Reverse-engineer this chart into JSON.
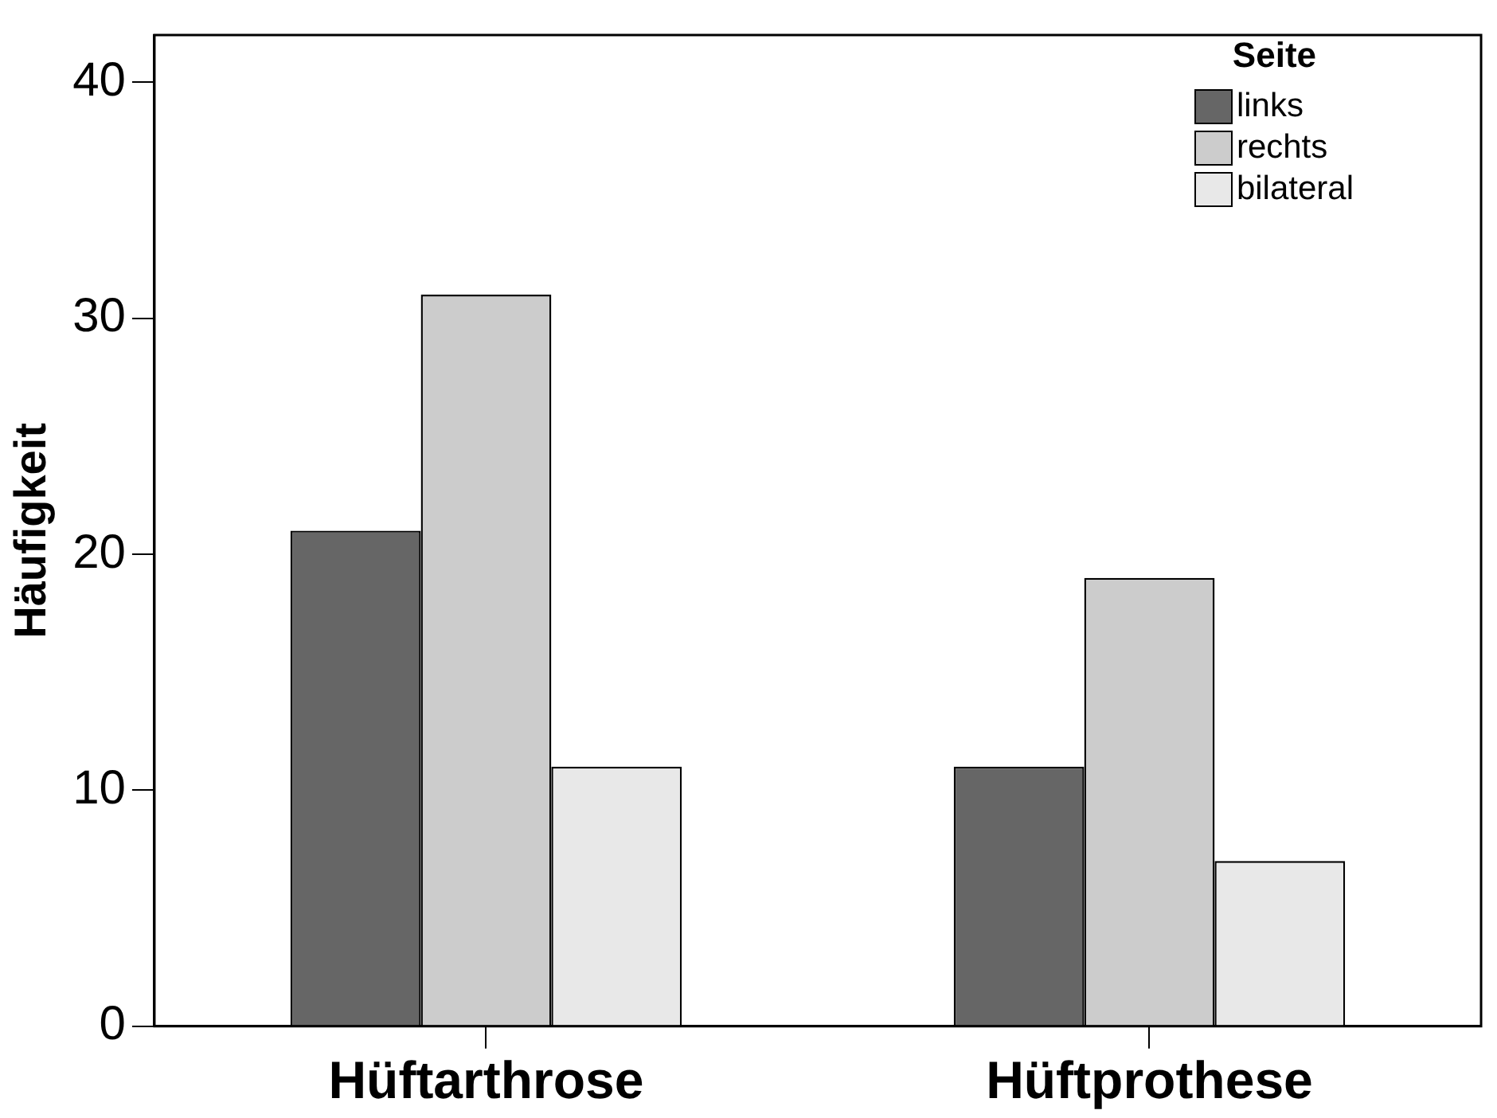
{
  "chart_data": {
    "type": "bar",
    "ylabel": "Häufigkeit",
    "legend_title": "Seite",
    "legend": "top right",
    "categories": [
      "Hüftarthrose",
      "Hüftprothese"
    ],
    "series": [
      {
        "name": "links",
        "color": "#666666",
        "values": [
          21,
          11
        ]
      },
      {
        "name": "rechts",
        "color": "#cccccc",
        "values": [
          31,
          19
        ]
      },
      {
        "name": "bilateral",
        "color": "#e8e8e8",
        "values": [
          11,
          7
        ]
      }
    ],
    "ylim": [
      0,
      42
    ],
    "yticks": [
      0,
      10,
      20,
      30,
      40
    ],
    "grid": false
  }
}
